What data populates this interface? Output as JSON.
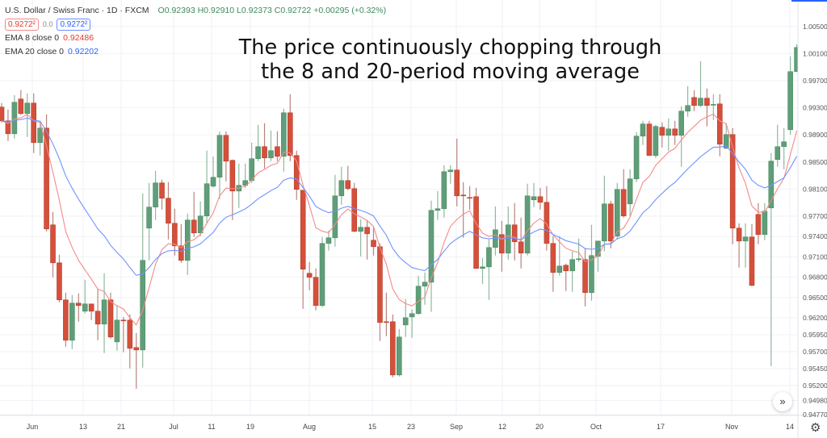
{
  "legend": {
    "symbol": "U.S. Dollar / Swiss Franc · 1D · FXCM",
    "ohlc": "O0.92393 H0.92910 L0.92373 C0.92722 +0.00295 (+0.32%)",
    "bid": "0.9272²",
    "spread": "0.0",
    "ask": "0.9272²",
    "ema8_label": "EMA 8 close 0",
    "ema8_value": "0.92486",
    "ema20_label": "EMA 20 close 0",
    "ema20_value": "0.92202"
  },
  "annotation": {
    "line1": "The price continuously chopping through",
    "line2": "the 8 and 20-period moving average"
  },
  "controls": {
    "scroll_icon": "double-chevron-right-icon",
    "scroll_label": "»",
    "settings_icon": "gear-icon",
    "settings_label": "⚙"
  },
  "chart_data": {
    "type": "candlestick",
    "title": "",
    "xlabel": "",
    "ylabel": "",
    "ylim": [
      0.9476,
      1.0089
    ],
    "grid": true,
    "colors": {
      "up": "#5f9e78",
      "down": "#d4503b",
      "ema8": "#f48a8a",
      "ema20": "#6f93ff"
    },
    "x_tick_labels": [
      "Jun",
      "13",
      "21",
      "Jul",
      "11",
      "19",
      "Aug",
      "15",
      "23",
      "Sep",
      "12",
      "20",
      "Oct",
      "17",
      "Nov",
      "14"
    ],
    "y_tick_labels": [
      "1.00500",
      "1.00100",
      "0.99700",
      "0.99300",
      "0.98900",
      "0.98500",
      "0.98100",
      "0.97700",
      "0.97400",
      "0.97100",
      "0.96800",
      "0.96500",
      "0.96200",
      "0.95950",
      "0.95700",
      "0.95450",
      "0.95200",
      "0.94980",
      "0.94770"
    ],
    "series": [
      {
        "name": "EMA 8 close 0",
        "type": "ema",
        "period": 8
      },
      {
        "name": "EMA 20 close 0",
        "type": "ema",
        "period": 20
      }
    ],
    "ohlc": [
      [
        0.9931,
        0.99369,
        0.99084,
        0.99107
      ],
      [
        0.99107,
        0.99274,
        0.9881,
        0.98917
      ],
      [
        0.98917,
        0.99488,
        0.98845,
        0.99381
      ],
      [
        0.99429,
        0.9956,
        0.99191,
        0.99214
      ],
      [
        0.99214,
        0.99512,
        0.98869,
        0.99369
      ],
      [
        0.99369,
        0.99512,
        0.98631,
        0.98786
      ],
      [
        0.98786,
        0.99107,
        0.98595,
        0.99
      ],
      [
        0.99,
        0.99203,
        0.97476,
        0.97512
      ],
      [
        0.97572,
        0.97762,
        0.96798,
        0.97012
      ],
      [
        0.97012,
        0.97131,
        0.96429,
        0.96465
      ],
      [
        0.96465,
        0.96572,
        0.95774,
        0.95869
      ],
      [
        0.95869,
        0.96536,
        0.95738,
        0.96417
      ],
      [
        0.96417,
        0.9656,
        0.96143,
        0.96381
      ],
      [
        0.96298,
        0.96762,
        0.96262,
        0.96405
      ],
      [
        0.96405,
        0.96405,
        0.96167,
        0.96298
      ],
      [
        0.96298,
        0.96631,
        0.95869,
        0.96107
      ],
      [
        0.96107,
        0.96857,
        0.95679,
        0.96465
      ],
      [
        0.96465,
        0.96572,
        0.95893,
        0.95917
      ],
      [
        0.95845,
        0.96381,
        0.95714,
        0.96167
      ],
      [
        0.96167,
        0.96214,
        0.95691,
        0.9616
      ],
      [
        0.96167,
        0.9625,
        0.95453,
        0.9575
      ],
      [
        0.95762,
        0.95976,
        0.95155,
        0.95726
      ],
      [
        0.95726,
        0.98036,
        0.95465,
        0.97048
      ],
      [
        0.97524,
        0.98191,
        0.97048,
        0.97834
      ],
      [
        0.97834,
        0.98369,
        0.97643,
        0.98191
      ],
      [
        0.98191,
        0.98238,
        0.97798,
        0.97965
      ],
      [
        0.97965,
        0.98202,
        0.97357,
        0.97595
      ],
      [
        0.97595,
        0.9781,
        0.97119,
        0.97262
      ],
      [
        0.97262,
        0.97583,
        0.97012,
        0.97048
      ],
      [
        0.97048,
        0.97738,
        0.96833,
        0.97643
      ],
      [
        0.97643,
        0.9806,
        0.97393,
        0.97453
      ],
      [
        0.97453,
        0.97917,
        0.97405,
        0.97703
      ],
      [
        0.97703,
        0.98667,
        0.97595,
        0.98179
      ],
      [
        0.98143,
        0.98583,
        0.98119,
        0.98274
      ],
      [
        0.98274,
        0.98953,
        0.97953,
        0.98893
      ],
      [
        0.98893,
        0.98953,
        0.98214,
        0.98512
      ],
      [
        0.98524,
        0.98536,
        0.97643,
        0.98071
      ],
      [
        0.98071,
        0.98476,
        0.97822,
        0.98155
      ],
      [
        0.98155,
        0.98476,
        0.98119,
        0.98226
      ],
      [
        0.98226,
        0.98786,
        0.98191,
        0.98548
      ],
      [
        0.98548,
        0.99048,
        0.98512,
        0.98726
      ],
      [
        0.98726,
        0.99072,
        0.98405,
        0.9856
      ],
      [
        0.9856,
        0.98964,
        0.98512,
        0.98667
      ],
      [
        0.98726,
        0.98953,
        0.98512,
        0.98583
      ],
      [
        0.98583,
        0.99286,
        0.98357,
        0.99226
      ],
      [
        0.99226,
        0.995,
        0.98512,
        0.98595
      ],
      [
        0.98595,
        0.98667,
        0.97941,
        0.98095
      ],
      [
        0.98083,
        0.98083,
        0.96333,
        0.96917
      ],
      [
        0.96857,
        0.97024,
        0.96607,
        0.96798
      ],
      [
        0.96798,
        0.96929,
        0.9631,
        0.96381
      ],
      [
        0.96381,
        0.97393,
        0.96357,
        0.97298
      ],
      [
        0.97298,
        0.97488,
        0.97191,
        0.97381
      ],
      [
        0.97381,
        0.9831,
        0.9725,
        0.98
      ],
      [
        0.98,
        0.98429,
        0.97869,
        0.98226
      ],
      [
        0.98226,
        0.98441,
        0.98083,
        0.98107
      ],
      [
        0.98107,
        0.98191,
        0.97464,
        0.97476
      ],
      [
        0.97476,
        0.97655,
        0.97107,
        0.97536
      ],
      [
        0.97536,
        0.97643,
        0.9706,
        0.9744
      ],
      [
        0.97345,
        0.97536,
        0.97119,
        0.9725
      ],
      [
        0.9725,
        0.97298,
        0.95857,
        0.96131
      ],
      [
        0.96143,
        0.96572,
        0.95929,
        0.96135
      ],
      [
        0.96143,
        0.9625,
        0.95322,
        0.95357
      ],
      [
        0.95357,
        0.96036,
        0.95334,
        0.95917
      ],
      [
        0.96095,
        0.96477,
        0.95917,
        0.96202
      ],
      [
        0.96214,
        0.96322,
        0.95905,
        0.96262
      ],
      [
        0.96262,
        0.96821,
        0.9625,
        0.96667
      ],
      [
        0.96667,
        0.96869,
        0.96393,
        0.96726
      ],
      [
        0.96726,
        0.97929,
        0.96286,
        0.97786
      ],
      [
        0.97786,
        0.98071,
        0.97643,
        0.9781
      ],
      [
        0.9781,
        0.98452,
        0.97679,
        0.98357
      ],
      [
        0.98357,
        0.98452,
        0.98179,
        0.98381
      ],
      [
        0.98381,
        0.98845,
        0.97845,
        0.98
      ],
      [
        0.98012,
        0.98202,
        0.97381,
        0.98
      ],
      [
        0.97976,
        0.98143,
        0.97798,
        0.97964
      ],
      [
        0.97988,
        0.98119,
        0.96929,
        0.96929
      ],
      [
        0.96929,
        0.97083,
        0.96702,
        0.96952
      ],
      [
        0.96952,
        0.97357,
        0.96465,
        0.97238
      ],
      [
        0.97238,
        0.97845,
        0.97119,
        0.975
      ],
      [
        0.97429,
        0.97631,
        0.96881,
        0.97155
      ],
      [
        0.97155,
        0.97845,
        0.9706,
        0.97572
      ],
      [
        0.97572,
        0.97893,
        0.97048,
        0.97322
      ],
      [
        0.97322,
        0.97679,
        0.96929,
        0.97155
      ],
      [
        0.97155,
        0.98179,
        0.97119,
        0.98
      ],
      [
        0.97941,
        0.98191,
        0.97834,
        0.97988
      ],
      [
        0.97988,
        0.98119,
        0.97798,
        0.97905
      ],
      [
        0.97905,
        0.98143,
        0.97191,
        0.97298
      ],
      [
        0.97298,
        0.97405,
        0.96584,
        0.96869
      ],
      [
        0.96869,
        0.97405,
        0.96821,
        0.96964
      ],
      [
        0.96976,
        0.97,
        0.96596,
        0.96893
      ],
      [
        0.96893,
        0.97179,
        0.96584,
        0.9706
      ],
      [
        0.9706,
        0.97369,
        0.97024,
        0.97071
      ],
      [
        0.9706,
        0.97226,
        0.96369,
        0.96572
      ],
      [
        0.96572,
        0.97572,
        0.96453,
        0.97119
      ],
      [
        0.97107,
        0.97333,
        0.96881,
        0.97333
      ],
      [
        0.97333,
        0.98298,
        0.97179,
        0.97881
      ],
      [
        0.97881,
        0.97929,
        0.97226,
        0.97333
      ],
      [
        0.97405,
        0.98191,
        0.97357,
        0.98095
      ],
      [
        0.98095,
        0.98393,
        0.97679,
        0.97703
      ],
      [
        0.97881,
        0.98393,
        0.97703,
        0.9825
      ],
      [
        0.9825,
        0.98941,
        0.98202,
        0.98881
      ],
      [
        0.98881,
        0.99107,
        0.9875,
        0.9906
      ],
      [
        0.9906,
        0.99107,
        0.98595,
        0.98595
      ],
      [
        0.98595,
        0.99048,
        0.9856,
        0.99024
      ],
      [
        0.99012,
        0.99084,
        0.98714,
        0.98893
      ],
      [
        0.98893,
        0.99143,
        0.98667,
        0.98988
      ],
      [
        0.98988,
        0.99107,
        0.9875,
        0.98893
      ],
      [
        0.98893,
        0.99321,
        0.98429,
        0.9925
      ],
      [
        0.9925,
        0.99619,
        0.99167,
        0.99333
      ],
      [
        0.99452,
        0.9956,
        0.9925,
        0.99333
      ],
      [
        0.99333,
        0.99988,
        0.9931,
        0.99441
      ],
      [
        0.99441,
        0.99583,
        0.99024,
        0.99333
      ],
      [
        0.99345,
        0.995,
        0.99119,
        0.9935
      ],
      [
        0.99357,
        0.995,
        0.98583,
        0.98762
      ],
      [
        0.98702,
        0.99072,
        0.9869,
        0.98905
      ],
      [
        0.98905,
        0.99,
        0.97286,
        0.97524
      ],
      [
        0.97524,
        0.97595,
        0.96941,
        0.97333
      ],
      [
        0.97333,
        0.97595,
        0.96941,
        0.97393
      ],
      [
        0.97393,
        0.97583,
        0.96667,
        0.96679
      ],
      [
        0.97726,
        0.97893,
        0.97286,
        0.97429
      ],
      [
        0.97429,
        0.97893,
        0.97345,
        0.97774
      ],
      [
        0.97822,
        0.98631,
        0.95488,
        0.98512
      ],
      [
        0.98536,
        0.99048,
        0.98429,
        0.98726
      ],
      [
        0.98726,
        0.99,
        0.98393,
        0.98798
      ],
      [
        0.98976,
        1.0006,
        0.98905,
        0.99833
      ],
      [
        0.99833,
        1.00238,
        0.99833,
        1.0019
      ]
    ]
  }
}
